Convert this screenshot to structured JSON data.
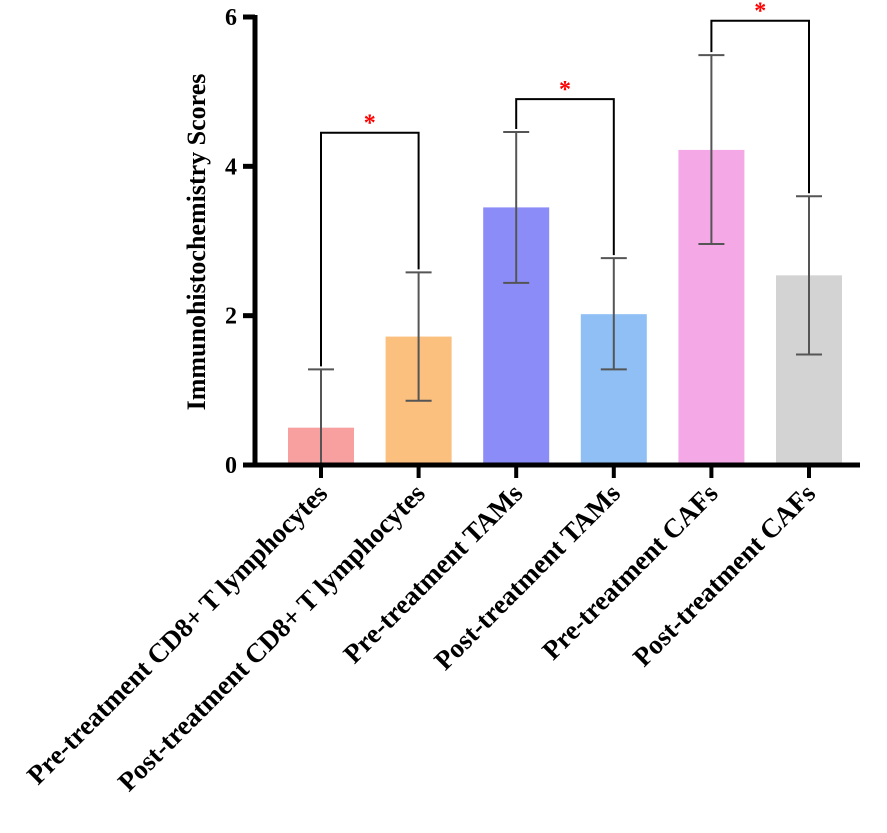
{
  "chart_data": {
    "type": "bar",
    "title": "",
    "xlabel": "",
    "ylabel": "Immunohistochemistry Scores",
    "ylim": [
      0,
      6
    ],
    "yticks": [
      0,
      2,
      4,
      6
    ],
    "grid": false,
    "categories": [
      "Pre-treatment CD8+ T lymphocytes",
      "Post-treatment CD8+ T lymphocytes",
      "Pre-treatment TAMs",
      "Post-treatment TAMs",
      "Pre-treatment CAFs",
      "Post-treatment CAFs"
    ],
    "values": [
      0.5,
      1.72,
      3.45,
      2.02,
      4.22,
      2.54
    ],
    "error_low": [
      0.01,
      0.86,
      2.44,
      1.28,
      2.96,
      1.48
    ],
    "error_high": [
      1.28,
      2.58,
      4.46,
      2.77,
      5.49,
      3.6
    ],
    "colors": [
      "#f8a0a0",
      "#fbbf7e",
      "#8c8cf8",
      "#8fbff4",
      "#f4a9e6",
      "#d3d3d3"
    ],
    "error_color": "#555555",
    "significance": [
      {
        "from": 0,
        "to": 1,
        "label": "*",
        "level": 4.45
      },
      {
        "from": 2,
        "to": 3,
        "label": "*",
        "level": 4.9
      },
      {
        "from": 4,
        "to": 5,
        "label": "*",
        "level": 5.95
      }
    ],
    "significance_color": "#ff0000"
  }
}
